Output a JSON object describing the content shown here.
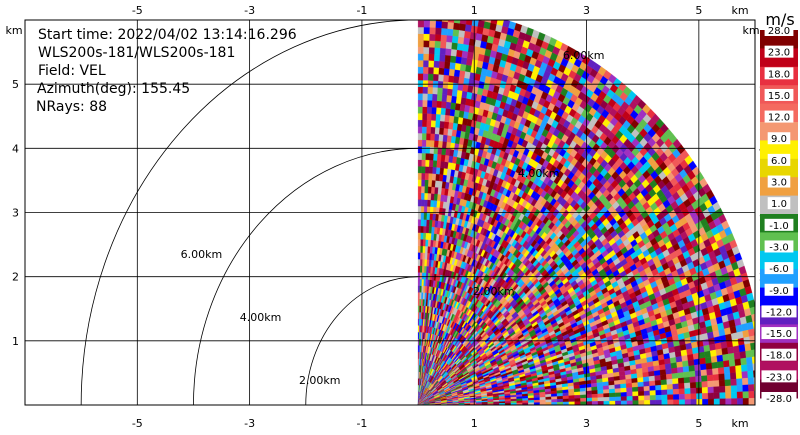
{
  "chart_data": {
    "type": "heatmap",
    "title_lines": [
      {
        "key": "start",
        "text": "Start time: 2022/04/02 13:14:16.296"
      },
      {
        "key": "instrument",
        "text": "WLS200s-181/WLS200s-181"
      },
      {
        "key": "field",
        "text": "Field: VEL"
      },
      {
        "key": "azimuth",
        "text": "Azimuth(deg): 155.45"
      },
      {
        "key": "nrays",
        "text": "NRays: 88"
      }
    ],
    "x_unit": "km",
    "y_unit": "km",
    "xlim": [
      -7,
      6
    ],
    "ylim": [
      0,
      6
    ],
    "x_ticks": [
      -5,
      -3,
      -1,
      1,
      3,
      5
    ],
    "y_ticks": [
      1,
      2,
      3,
      4,
      5
    ],
    "grid": true,
    "range_rings": [
      {
        "r": 2,
        "label": "2.00km"
      },
      {
        "r": 4,
        "label": "4.00km"
      },
      {
        "r": 6,
        "label": "6.00km"
      }
    ],
    "data_sector": {
      "x_min": -0.95,
      "r_max": 6.2,
      "azimuth_from": 0,
      "azimuth_to": 90,
      "n_rays": 88,
      "range_gates": 60
    },
    "colorbar": {
      "unit": "m/s",
      "labels": [
        "28.0",
        "23.0",
        "18.0",
        "15.0",
        "12.0",
        "9.0",
        "6.0",
        "3.0",
        "1.0",
        "-1.0",
        "-3.0",
        "-6.0",
        "-9.0",
        "-12.0",
        "-15.0",
        "-18.0",
        "-23.0",
        "-28.0"
      ],
      "colors": [
        "#800000",
        "#c00018",
        "#e83040",
        "#f05858",
        "#f46a60",
        "#f49872",
        "#fff000",
        "#e8d600",
        "#f0a040",
        "#c0c0c0",
        "#208020",
        "#60c050",
        "#00c8f0",
        "#20a0ff",
        "#0000ff",
        "#6020c0",
        "#a030c0",
        "#900040",
        "#b01060",
        "#700030"
      ]
    },
    "velocity_palette": [
      "#800000",
      "#c00018",
      "#e83040",
      "#f05858",
      "#f49872",
      "#fff000",
      "#f0a040",
      "#c0c0c0",
      "#208020",
      "#60c050",
      "#00c8f0",
      "#20a0ff",
      "#0000ff",
      "#6020c0",
      "#a030c0",
      "#900040",
      "#b01060"
    ]
  }
}
